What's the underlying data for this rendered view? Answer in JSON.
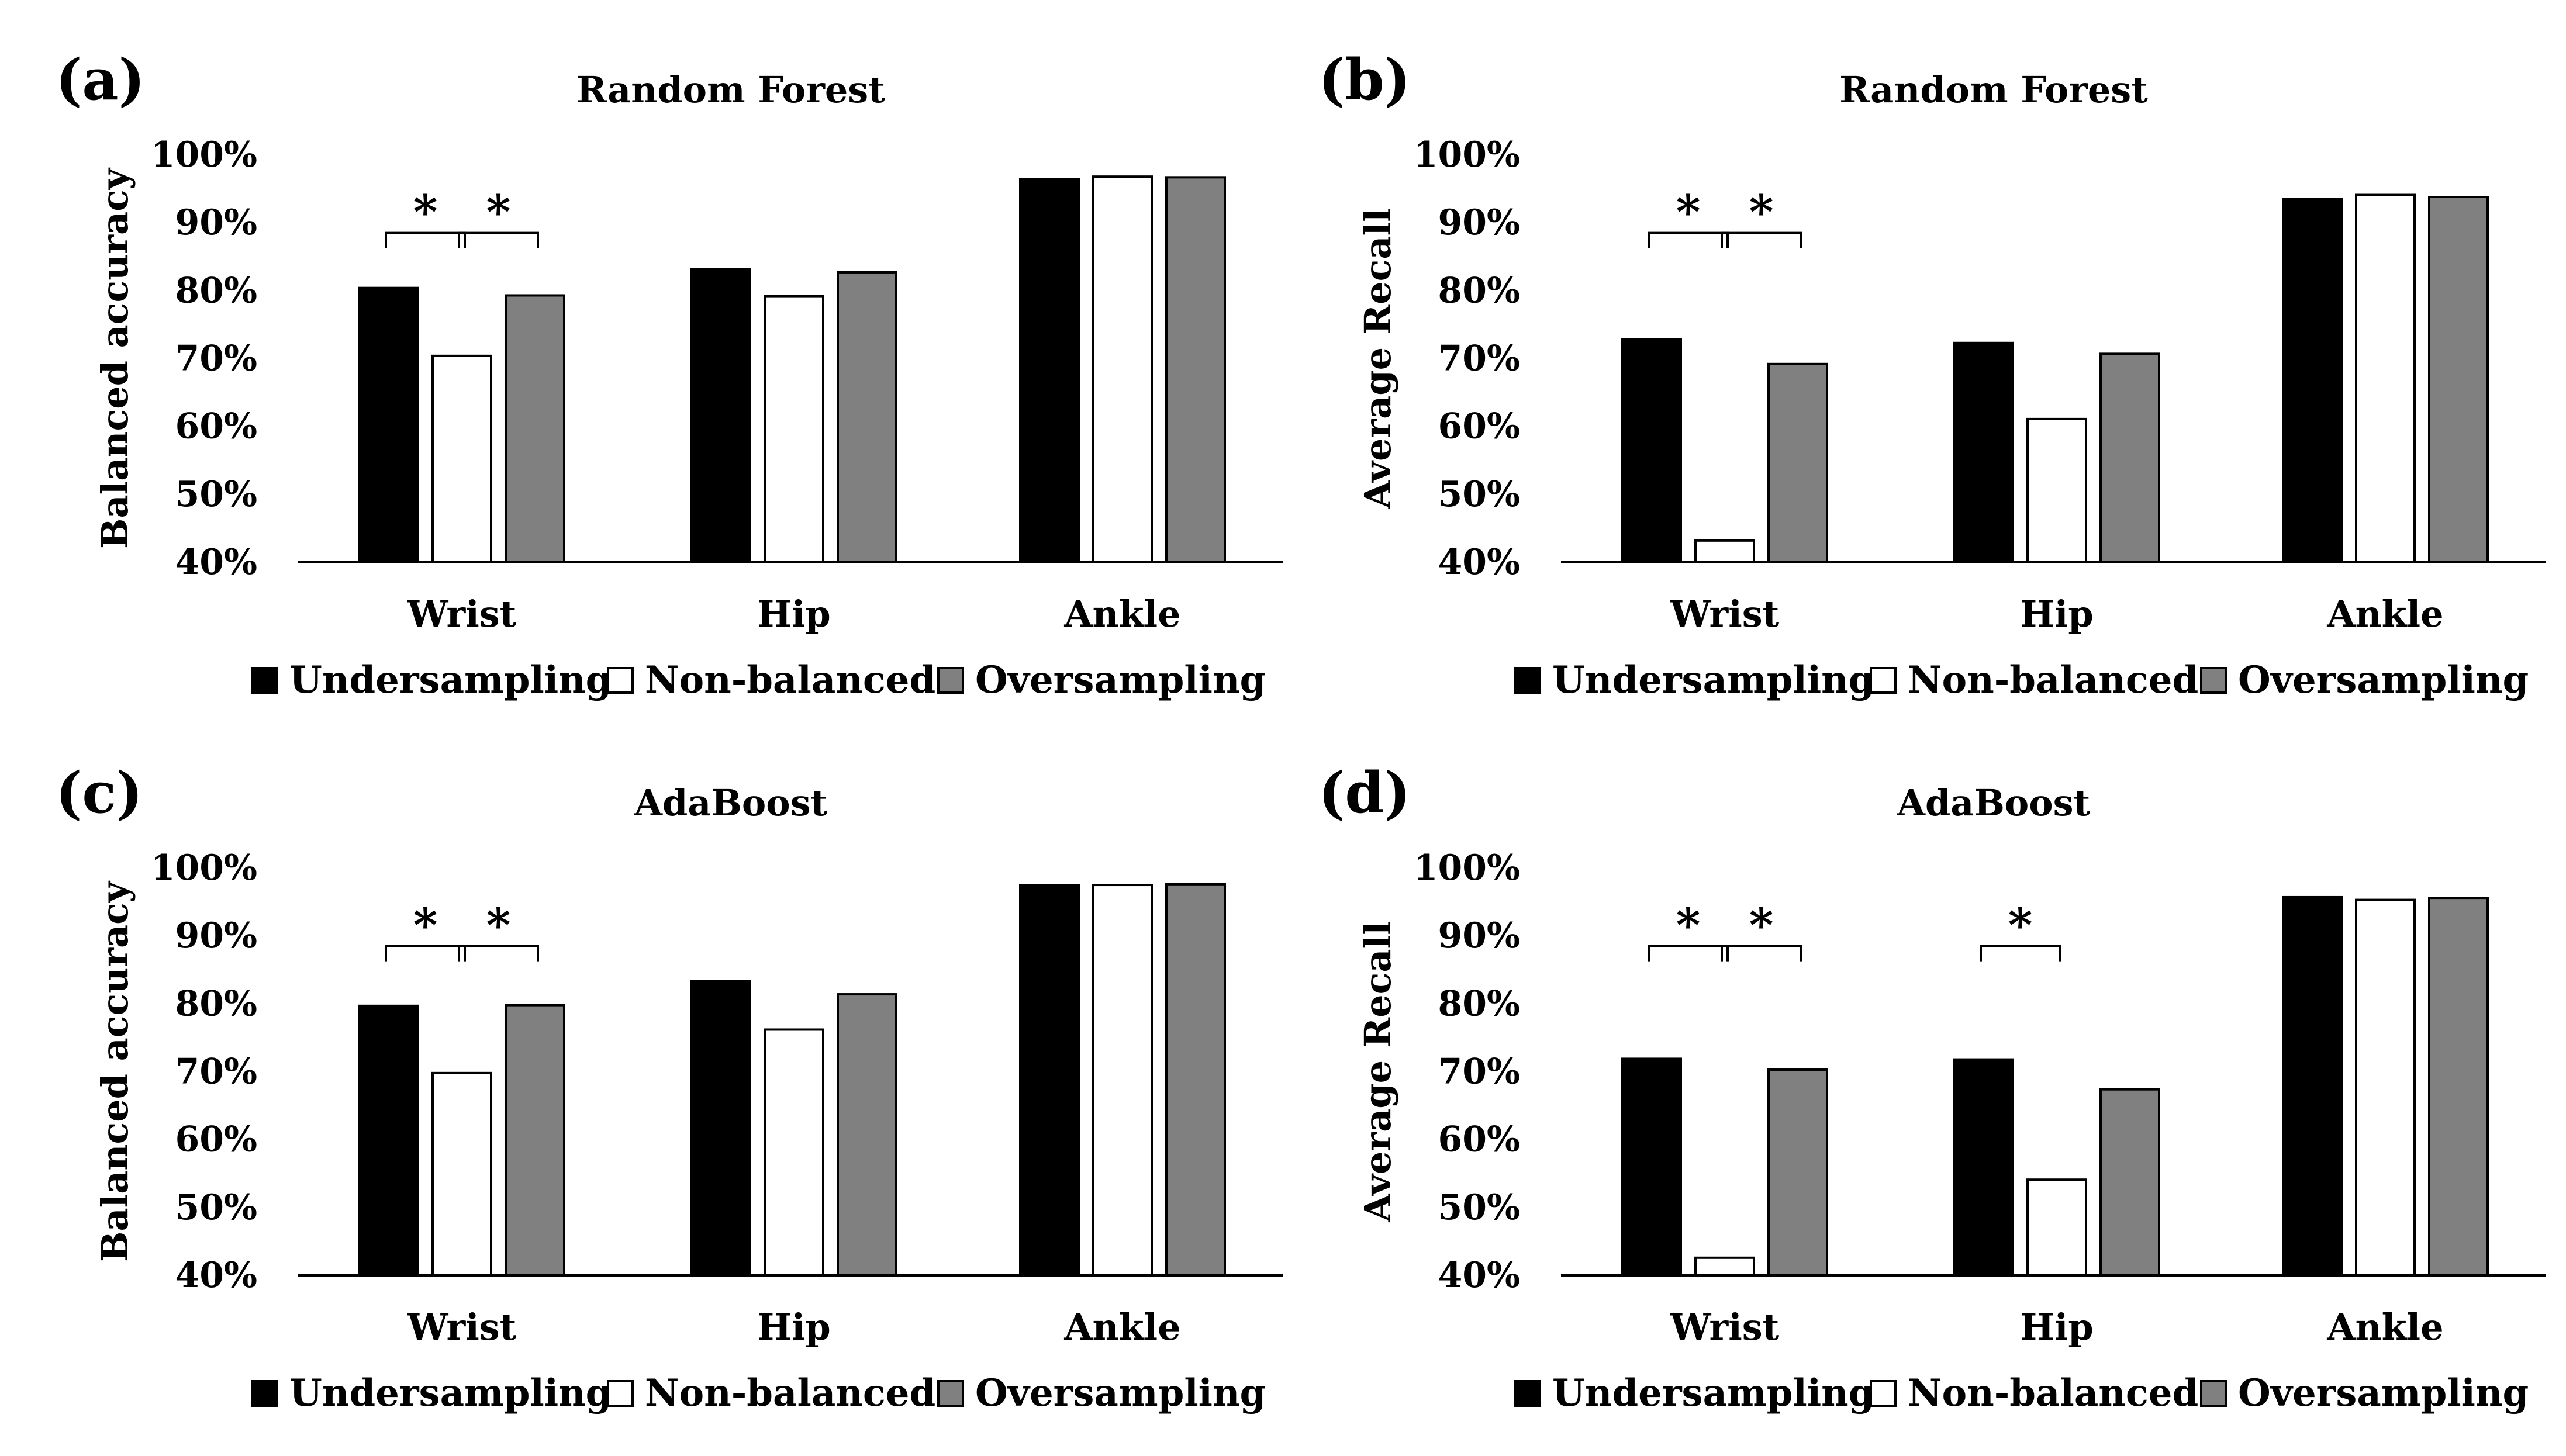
{
  "colors": {
    "Undersampling": "#000000",
    "Non-balanced": "#ffffff",
    "Oversampling": "#808080",
    "stroke": "#000000"
  },
  "chart_data": [
    {
      "type": "bar",
      "panel": "(a)",
      "title": "Random Forest",
      "ylabel": "Balanced accuracy",
      "ylim": [
        40,
        100
      ],
      "yticks": [
        "40%",
        "50%",
        "60%",
        "70%",
        "80%",
        "90%",
        "100%"
      ],
      "categories": [
        "Wrist",
        "Hip",
        "Ankle"
      ],
      "series": [
        {
          "name": "Undersampling",
          "values": [
            80.4,
            83.2,
            96.4
          ]
        },
        {
          "name": "Non-balanced",
          "values": [
            70.4,
            79.2,
            96.8
          ]
        },
        {
          "name": "Oversampling",
          "values": [
            79.3,
            82.7,
            96.7
          ]
        }
      ],
      "significance": [
        {
          "category": "Wrist",
          "from": "Undersampling",
          "to": "Non-balanced",
          "label": "*"
        },
        {
          "category": "Wrist",
          "from": "Non-balanced",
          "to": "Oversampling",
          "label": "*"
        }
      ],
      "legend": [
        "Undersampling",
        "Non-balanced",
        "Oversampling"
      ]
    },
    {
      "type": "bar",
      "panel": "(b)",
      "title": "Random Forest",
      "ylabel": "Average Recall",
      "ylim": [
        40,
        100
      ],
      "yticks": [
        "40%",
        "50%",
        "60%",
        "70%",
        "80%",
        "90%",
        "100%"
      ],
      "categories": [
        "Wrist",
        "Hip",
        "Ankle"
      ],
      "series": [
        {
          "name": "Undersampling",
          "values": [
            72.8,
            72.3,
            93.5
          ]
        },
        {
          "name": "Non-balanced",
          "values": [
            43.2,
            61.1,
            94.1
          ]
        },
        {
          "name": "Oversampling",
          "values": [
            69.2,
            70.7,
            93.8
          ]
        }
      ],
      "significance": [
        {
          "category": "Wrist",
          "from": "Undersampling",
          "to": "Non-balanced",
          "label": "*"
        },
        {
          "category": "Wrist",
          "from": "Non-balanced",
          "to": "Oversampling",
          "label": "*"
        }
      ],
      "legend": [
        "Undersampling",
        "Non-balanced",
        "Oversampling"
      ]
    },
    {
      "type": "bar",
      "panel": "(c)",
      "title": "AdaBoost",
      "ylabel": "Balanced accuracy",
      "ylim": [
        40,
        100
      ],
      "yticks": [
        "40%",
        "50%",
        "60%",
        "70%",
        "80%",
        "90%",
        "100%"
      ],
      "categories": [
        "Wrist",
        "Hip",
        "Ankle"
      ],
      "series": [
        {
          "name": "Undersampling",
          "values": [
            79.7,
            83.3,
            97.5
          ]
        },
        {
          "name": "Non-balanced",
          "values": [
            69.8,
            76.2,
            97.5
          ]
        },
        {
          "name": "Oversampling",
          "values": [
            79.8,
            81.4,
            97.6
          ]
        }
      ],
      "significance": [
        {
          "category": "Wrist",
          "from": "Undersampling",
          "to": "Non-balanced",
          "label": "*"
        },
        {
          "category": "Wrist",
          "from": "Non-balanced",
          "to": "Oversampling",
          "label": "*"
        }
      ],
      "legend": [
        "Undersampling",
        "Non-balanced",
        "Oversampling"
      ]
    },
    {
      "type": "bar",
      "panel": "(d)",
      "title": "AdaBoost",
      "ylabel": "Average Recall",
      "ylim": [
        40,
        100
      ],
      "yticks": [
        "40%",
        "50%",
        "60%",
        "70%",
        "80%",
        "90%",
        "100%"
      ],
      "categories": [
        "Wrist",
        "Hip",
        "Ankle"
      ],
      "series": [
        {
          "name": "Undersampling",
          "values": [
            71.9,
            71.8,
            95.7
          ]
        },
        {
          "name": "Non-balanced",
          "values": [
            42.6,
            54.1,
            95.3
          ]
        },
        {
          "name": "Oversampling",
          "values": [
            70.3,
            67.4,
            95.6
          ]
        }
      ],
      "significance": [
        {
          "category": "Wrist",
          "from": "Undersampling",
          "to": "Non-balanced",
          "label": "*"
        },
        {
          "category": "Wrist",
          "from": "Non-balanced",
          "to": "Oversampling",
          "label": "*"
        },
        {
          "category": "Hip",
          "from": "Undersampling",
          "to": "Non-balanced",
          "label": "*"
        }
      ],
      "legend": [
        "Undersampling",
        "Non-balanced",
        "Oversampling"
      ]
    }
  ]
}
